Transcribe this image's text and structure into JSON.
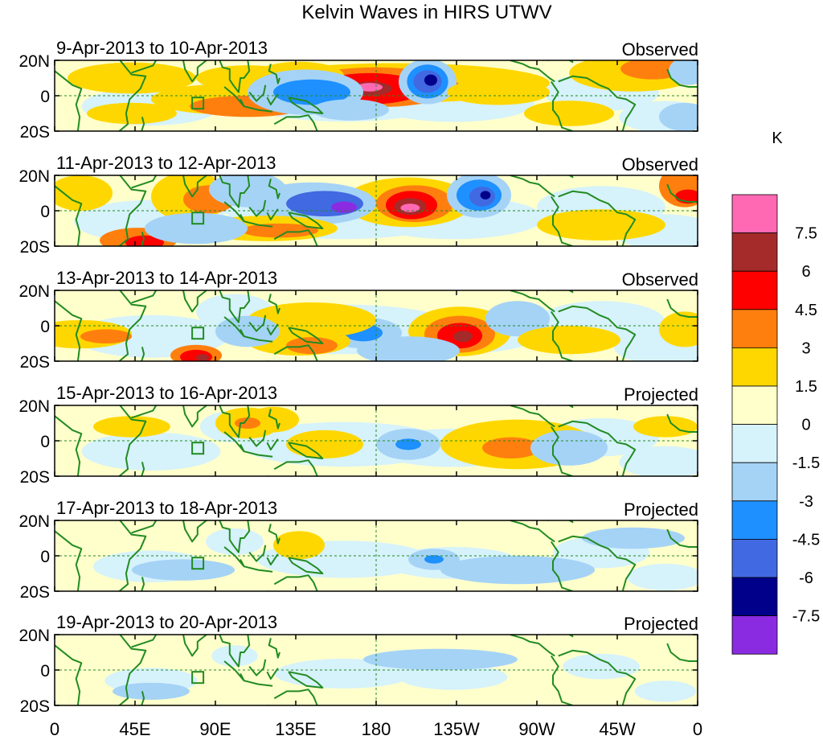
{
  "title": "Kelvin Waves in HIRS UTWV",
  "panels": [
    {
      "date_range": "9-Apr-2013 to 10-Apr-2013",
      "status": "Observed"
    },
    {
      "date_range": "11-Apr-2013 to 12-Apr-2013",
      "status": "Observed"
    },
    {
      "date_range": "13-Apr-2013 to 14-Apr-2013",
      "status": "Observed"
    },
    {
      "date_range": "15-Apr-2013 to 16-Apr-2013",
      "status": "Projected"
    },
    {
      "date_range": "17-Apr-2013 to 18-Apr-2013",
      "status": "Projected"
    },
    {
      "date_range": "19-Apr-2013 to 20-Apr-2013",
      "status": "Projected"
    }
  ],
  "lat_labels": [
    "20N",
    "0",
    "20S"
  ],
  "lon_labels": [
    "0",
    "45E",
    "90E",
    "135E",
    "180",
    "135W",
    "90W",
    "45W",
    "0"
  ],
  "colorbar": {
    "unit": "K",
    "labels": [
      "7.5",
      "6",
      "4.5",
      "3",
      "1.5",
      "0",
      "-1.5",
      "-3",
      "-4.5",
      "-6",
      "-7.5"
    ],
    "colors_top_to_bottom": [
      "#ff69b4",
      "#a52a2a",
      "#ff0000",
      "#ff7f0e",
      "#ffd700",
      "#ffffcc",
      "#d6f2fb",
      "#a5d3f6",
      "#1e90ff",
      "#4169e1",
      "#00008b",
      "#8a2be2"
    ]
  },
  "map_colors": {
    "coast": "#228b22",
    "equator_line": "#228b22"
  }
}
